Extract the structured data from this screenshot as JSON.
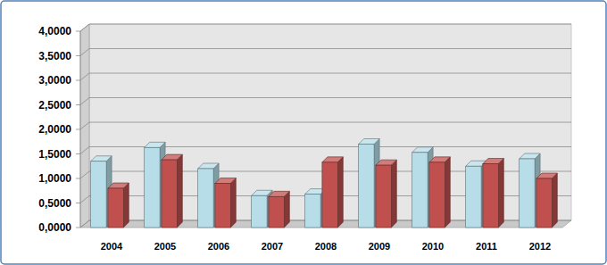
{
  "chart_data": {
    "type": "bar",
    "categories": [
      "2004",
      "2005",
      "2006",
      "2007",
      "2008",
      "2009",
      "2010",
      "2011",
      "2012"
    ],
    "series": [
      {
        "color": "#b7dde8",
        "values": [
          1.35,
          1.63,
          1.2,
          0.65,
          0.68,
          1.7,
          1.53,
          1.25,
          1.4
        ]
      },
      {
        "color": "#c0504d",
        "values": [
          0.8,
          1.38,
          0.9,
          0.63,
          1.33,
          1.27,
          1.33,
          1.3,
          1.0
        ]
      }
    ],
    "ylim": [
      0,
      4
    ],
    "yticks": [
      {
        "value": 0,
        "label": "0,0000"
      },
      {
        "value": 0.5,
        "label": "0,5000"
      },
      {
        "value": 1,
        "label": "1,0000"
      },
      {
        "value": 1.5,
        "label": "1,5000"
      },
      {
        "value": 2,
        "label": "2,0000"
      },
      {
        "value": 2.5,
        "label": "2,5000"
      },
      {
        "value": 3,
        "label": "3,0000"
      },
      {
        "value": 3.5,
        "label": "3,5000"
      },
      {
        "value": 4,
        "label": "4,0000"
      }
    ],
    "grid": true
  }
}
